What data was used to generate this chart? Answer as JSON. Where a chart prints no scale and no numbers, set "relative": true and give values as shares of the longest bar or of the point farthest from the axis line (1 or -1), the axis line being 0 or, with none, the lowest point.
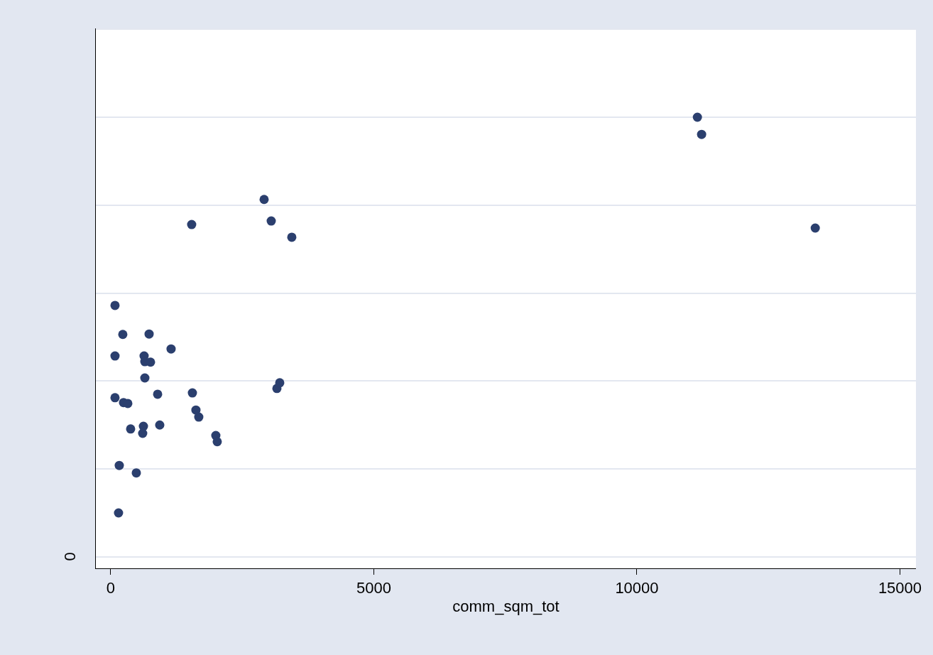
{
  "chart_data": {
    "type": "scatter",
    "xlabel": "comm_sqm_tot",
    "relative": true,
    "grid": "y",
    "marker": "circle",
    "legend": false,
    "annotations": [
      "0"
    ],
    "xlim": [
      -283,
      15304
    ],
    "xticks": [
      0,
      5000,
      10000,
      15000
    ],
    "series": [
      {
        "color": "#2b3f6e",
        "x": [
          11150,
          11230,
          13390,
          2915,
          3050,
          1538,
          3441,
          81,
          229,
          729,
          1147,
          81,
          634,
          648,
          756,
          648,
          81,
          891,
          1552,
          243,
          324,
          1619,
          1673,
          3158,
          3212,
          378,
          621,
          607,
          931,
          1997,
          2024,
          162,
          486,
          148
        ],
        "values": [
          1.0,
          0.961,
          0.748,
          0.813,
          0.764,
          0.756,
          0.727,
          0.572,
          0.506,
          0.507,
          0.473,
          0.457,
          0.457,
          0.444,
          0.443,
          0.407,
          0.362,
          0.37,
          0.373,
          0.351,
          0.349,
          0.334,
          0.318,
          0.383,
          0.396,
          0.291,
          0.297,
          0.281,
          0.3,
          0.276,
          0.262,
          0.208,
          0.191,
          0.1
        ]
      }
    ]
  }
}
